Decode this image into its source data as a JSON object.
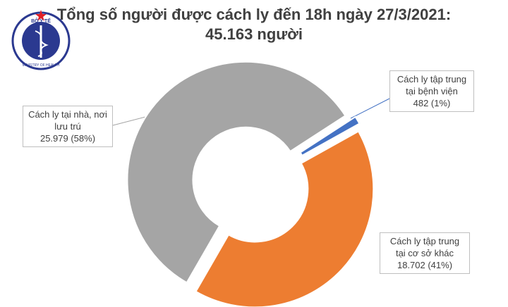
{
  "logo": {
    "top": "BỘ Y TẾ",
    "bottom": "MINISTRY OF HEALTH"
  },
  "chart_data": {
    "type": "donut",
    "title": "Tổng số người được cách ly đến 18h ngày 27/3/2021:",
    "subtitle": "45.163 người",
    "categories": [
      "Cách ly tập trung tại bệnh viện",
      "Cách ly tập trung tại cơ sở khác",
      "Cách ly tại nhà, nơi lưu trú"
    ],
    "values": [
      482,
      18702,
      25979
    ],
    "value_labels": [
      "482 (1%)",
      "18.702 (41%)",
      "25.979 (58%)"
    ],
    "colors": [
      "#4472c4",
      "#ed7d31",
      "#a5a5a5"
    ]
  }
}
